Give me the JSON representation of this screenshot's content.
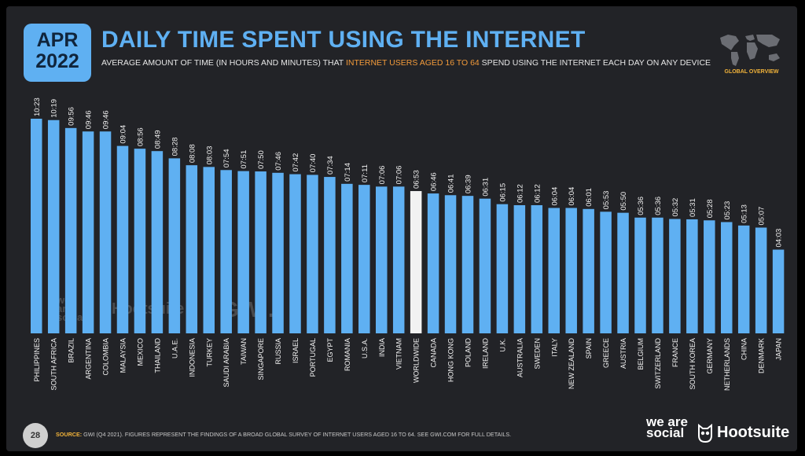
{
  "header": {
    "date_month": "APR",
    "date_year": "2022",
    "title": "DAILY TIME SPENT USING THE INTERNET",
    "subtitle_pre": "AVERAGE AMOUNT OF TIME (IN HOURS AND MINUTES) THAT ",
    "subtitle_highlight": "INTERNET USERS AGED 16 TO 64",
    "subtitle_post": " SPEND USING THE INTERNET EACH DAY ON ANY DEVICE",
    "badge_label": "GLOBAL OVERVIEW",
    "badge_icon": "world-map-icon"
  },
  "chart_data": {
    "type": "bar",
    "categories": [
      "PHILIPPINES",
      "SOUTH AFRICA",
      "BRAZIL",
      "ARGENTINA",
      "COLOMBIA",
      "MALAYSIA",
      "MEXICO",
      "THAILAND",
      "U.A.E.",
      "INDONESIA",
      "TURKEY",
      "SAUDI ARABIA",
      "TAIWAN",
      "SINGAPORE",
      "RUSSIA",
      "ISRAEL",
      "PORTUGAL",
      "EGYPT",
      "ROMANIA",
      "U.S.A.",
      "INDIA",
      "VIETNAM",
      "WORLDWIDE",
      "CANADA",
      "HONG KONG",
      "POLAND",
      "IRELAND",
      "U.K.",
      "AUSTRALIA",
      "SWEDEN",
      "ITALY",
      "NEW ZEALAND",
      "SPAIN",
      "GREECE",
      "AUSTRIA",
      "BELGIUM",
      "SWITZERLAND",
      "FRANCE",
      "SOUTH KOREA",
      "GERMANY",
      "NETHERLANDS",
      "CHINA",
      "DENMARK",
      "JAPAN"
    ],
    "labels": [
      "10:23",
      "10:19",
      "09:56",
      "09:46",
      "09:46",
      "09:04",
      "08:56",
      "08:49",
      "08:28",
      "08:08",
      "08:03",
      "07:54",
      "07:51",
      "07:50",
      "07:46",
      "07:42",
      "07:40",
      "07:34",
      "07:14",
      "07:11",
      "07:06",
      "07:06",
      "06:53",
      "06:46",
      "06:41",
      "06:39",
      "06:31",
      "06:15",
      "06:12",
      "06:12",
      "06:04",
      "06:04",
      "06:01",
      "05:53",
      "05:50",
      "05:36",
      "05:36",
      "05:32",
      "05:31",
      "05:28",
      "05:23",
      "05:13",
      "05:07",
      "04:03"
    ],
    "values_minutes": [
      623,
      619,
      596,
      586,
      586,
      544,
      536,
      529,
      508,
      488,
      483,
      474,
      471,
      470,
      466,
      462,
      460,
      454,
      434,
      431,
      426,
      426,
      413,
      406,
      401,
      399,
      391,
      375,
      372,
      372,
      364,
      364,
      361,
      353,
      350,
      336,
      336,
      332,
      331,
      328,
      323,
      313,
      307,
      243
    ],
    "highlight_category": "WORLDWIDE",
    "colors": {
      "bar": "#5fb0f2",
      "highlight": "#f2f2f2",
      "background": "#222327"
    }
  },
  "watermark": {
    "we_are_social": "we are social",
    "hootsuite": "Hootsuite",
    "gwi": "GWI."
  },
  "footer": {
    "page_number": "28",
    "source_label": "SOURCE:",
    "source_text": " GWI (Q4 2021). FIGURES REPRESENT THE FINDINGS OF A BROAD GLOBAL SURVEY OF INTERNET USERS AGED 16 TO 64. SEE GWI.COM FOR FULL DETAILS.",
    "we_are_social": "we are social",
    "hootsuite": "Hootsuite"
  }
}
